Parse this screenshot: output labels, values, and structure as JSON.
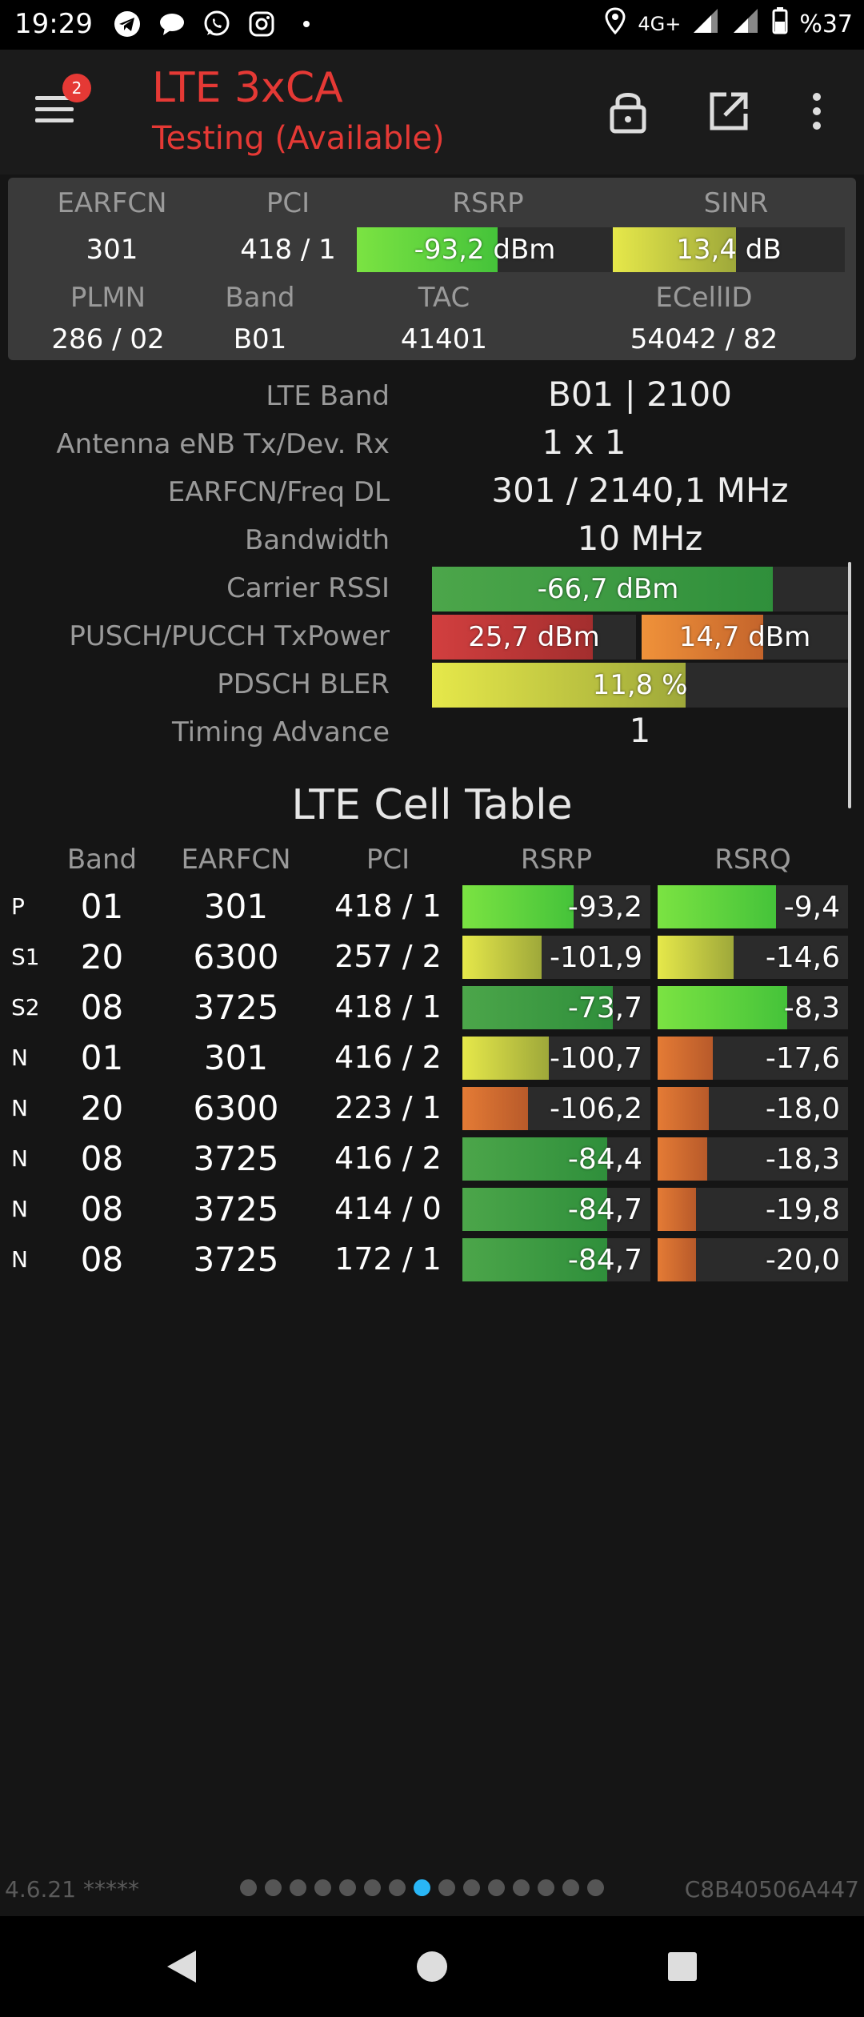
{
  "status_bar": {
    "time": "19:29",
    "icons": [
      "telegram-icon",
      "chat-bubble-icon",
      "whatsapp-icon",
      "instagram-icon",
      "dot-icon"
    ],
    "network": "4G+",
    "battery": "%37"
  },
  "app_bar": {
    "badge_count": "2",
    "title": "LTE 3xCA",
    "subtitle": "Testing (Available)",
    "title_color": "#e53935"
  },
  "summary": {
    "labels": {
      "earfcn": "EARFCN",
      "pci": "PCI",
      "rsrp": "RSRP",
      "sinr": "SINR",
      "plmn": "PLMN",
      "band": "Band",
      "tac": "TAC",
      "ecellid": "ECellID"
    },
    "earfcn": "301",
    "pci": "418 / 1",
    "rsrp": {
      "text": "-93,2 dBm",
      "level": 0.55
    },
    "sinr": {
      "text": "13,4 dB",
      "level": 0.53
    },
    "plmn": "286 / 02",
    "band": "B01",
    "tac": "41401",
    "ecellid": "54042 / 82"
  },
  "details": {
    "lte_band_label": "LTE Band",
    "lte_band": "B01 | 2100",
    "antenna_label": "Antenna eNB Tx/Dev. Rx",
    "antenna": "1 x 1",
    "earfcn_freq_label": "EARFCN/Freq DL",
    "earfcn_freq": "301 / 2140,1 MHz",
    "bandwidth_label": "Bandwidth",
    "bandwidth": "10 MHz",
    "carrier_rssi_label": "Carrier RSSI",
    "carrier_rssi": {
      "text": "-66,7 dBm",
      "level": 0.82
    },
    "tx_power_label": "PUSCH/PUCCH TxPower",
    "pusch": {
      "text": "25,7 dBm",
      "level": 0.79
    },
    "pucch": {
      "text": "14,7 dBm",
      "level": 0.59
    },
    "bler_label": "PDSCH BLER",
    "bler": {
      "text": "11,8 %",
      "level": 0.61
    },
    "timing_advance_label": "Timing Advance",
    "timing_advance": "1"
  },
  "cell_table": {
    "title": "LTE Cell Table",
    "headers": {
      "band": "Band",
      "earfcn": "EARFCN",
      "pci": "PCI",
      "rsrp": "RSRP",
      "rsrq": "RSRQ"
    },
    "rows": [
      {
        "type": "P",
        "band": "01",
        "earfcn": "301",
        "pci": "418 / 1",
        "rsrp": "-93,2",
        "rsrp_level": 0.59,
        "rsrp_color": "green",
        "rsrq": "-9,4",
        "rsrq_level": 0.62,
        "rsrq_color": "green"
      },
      {
        "type": "S1",
        "band": "20",
        "earfcn": "6300",
        "pci": "257 / 2",
        "rsrp": "-101,9",
        "rsrp_level": 0.42,
        "rsrp_color": "yellow",
        "rsrq": "-14,6",
        "rsrq_level": 0.4,
        "rsrq_color": "yellow"
      },
      {
        "type": "S2",
        "band": "08",
        "earfcn": "3725",
        "pci": "418 / 1",
        "rsrp": "-73,7",
        "rsrp_level": 0.8,
        "rsrp_color": "dgreen",
        "rsrq": "-8,3",
        "rsrq_level": 0.68,
        "rsrq_color": "green"
      },
      {
        "type": "N",
        "band": "01",
        "earfcn": "301",
        "pci": "416 / 2",
        "rsrp": "-100,7",
        "rsrp_level": 0.46,
        "rsrp_color": "yellow",
        "rsrq": "-17,6",
        "rsrq_level": 0.29,
        "rsrq_color": "orange"
      },
      {
        "type": "N",
        "band": "20",
        "earfcn": "6300",
        "pci": "223 / 1",
        "rsrp": "-106,2",
        "rsrp_level": 0.35,
        "rsrp_color": "orange",
        "rsrq": "-18,0",
        "rsrq_level": 0.27,
        "rsrq_color": "orange"
      },
      {
        "type": "N",
        "band": "08",
        "earfcn": "3725",
        "pci": "416 / 2",
        "rsrp": "-84,4",
        "rsrp_level": 0.77,
        "rsrp_color": "dgreen",
        "rsrq": "-18,3",
        "rsrq_level": 0.26,
        "rsrq_color": "orange"
      },
      {
        "type": "N",
        "band": "08",
        "earfcn": "3725",
        "pci": "414 / 0",
        "rsrp": "-84,7",
        "rsrp_level": 0.77,
        "rsrp_color": "dgreen",
        "rsrq": "-19,8",
        "rsrq_level": 0.2,
        "rsrq_color": "orange"
      },
      {
        "type": "N",
        "band": "08",
        "earfcn": "3725",
        "pci": "172 / 1",
        "rsrp": "-84,7",
        "rsrp_level": 0.77,
        "rsrp_color": "dgreen",
        "rsrq": "-20,0",
        "rsrq_level": 0.2,
        "rsrq_color": "orange"
      }
    ]
  },
  "footer": {
    "version": "4.6.21 *****",
    "device_id": "C8B40506A447",
    "page_count": 15,
    "active_page": 8
  },
  "nav_bar": {
    "back": "back-icon",
    "home": "home-icon",
    "recents": "recents-icon"
  }
}
